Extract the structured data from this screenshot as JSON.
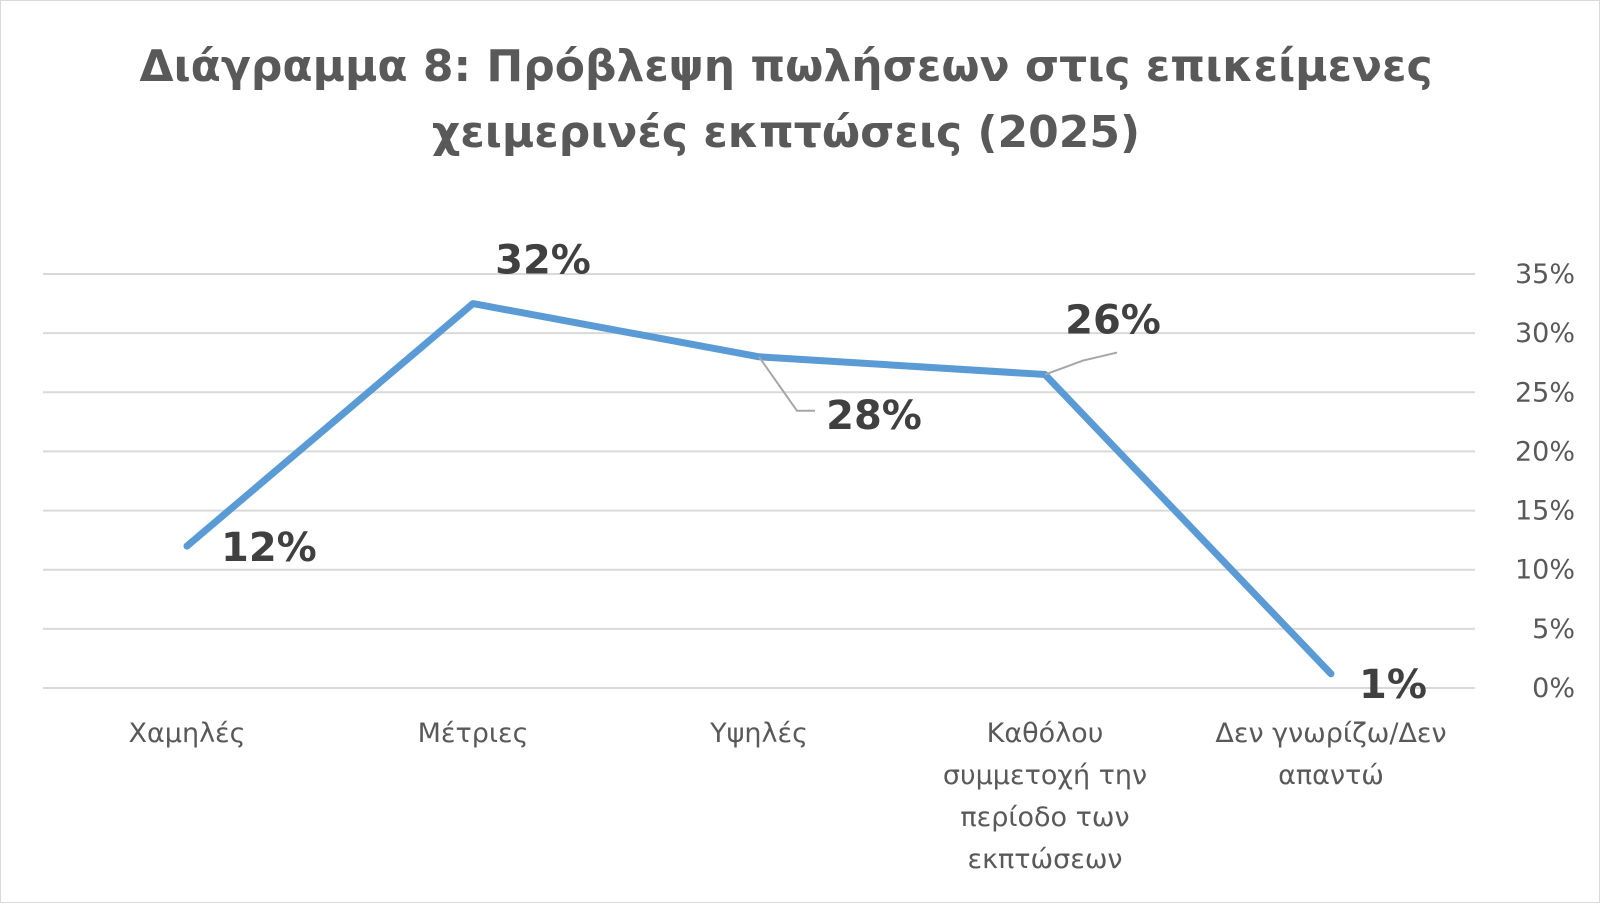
{
  "chart_data": {
    "type": "line",
    "title": "Διάγραμμα 8: Πρόβλεψη πωλήσεων στις επικείμενες χειμερινές εκπτώσεις (2025)",
    "title_lines": [
      "Διάγραμμα 8: Πρόβλεψη πωλήσεων στις επικείμενες",
      "χειμερινές εκπτώσεις (2025)"
    ],
    "categories": [
      "Χαμηλές",
      "Μέτριες",
      "Υψηλές",
      "Καθόλου συμμετοχή την περίοδο των εκπτώσεων",
      "Δεν γνωρίζω/Δεν απαντώ"
    ],
    "category_lines": [
      [
        "Χαμηλές"
      ],
      [
        "Μέτριες"
      ],
      [
        "Υψηλές"
      ],
      [
        "Καθόλου",
        "συμμετοχή την",
        "περίοδο των",
        "εκπτώσεων"
      ],
      [
        "Δεν γνωρίζω/Δεν",
        "απαντώ"
      ]
    ],
    "values": [
      12,
      32.5,
      28,
      26.5,
      1.2
    ],
    "data_labels": [
      "12%",
      "32%",
      "28%",
      "26%",
      "1%"
    ],
    "xlabel": "",
    "ylabel": "",
    "ylim": [
      0,
      35
    ],
    "y_ticks": [
      0,
      5,
      10,
      15,
      20,
      25,
      30,
      35
    ],
    "y_tick_labels": [
      "0%",
      "5%",
      "10%",
      "15%",
      "20%",
      "25%",
      "30%",
      "35%"
    ],
    "y_axis_side": "right",
    "grid": true,
    "legend": "none",
    "line_color": "#5b9bd5",
    "gridline_color": "#d9d9d9",
    "leader_line_color": "#a6a6a6"
  }
}
